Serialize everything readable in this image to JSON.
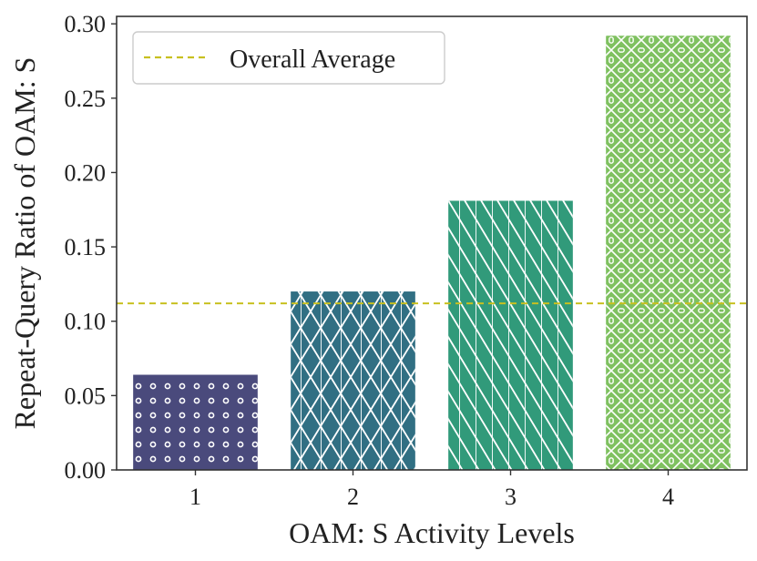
{
  "chart_data": {
    "type": "bar",
    "title": "",
    "xlabel": "OAM: S Activity Levels",
    "ylabel": "Repeat-Query Ratio of OAM: S",
    "categories": [
      "1",
      "2",
      "3",
      "4"
    ],
    "values": [
      0.064,
      0.12,
      0.181,
      0.292
    ],
    "ylim": [
      0,
      0.305
    ],
    "yticks": [
      "0.00",
      "0.05",
      "0.10",
      "0.15",
      "0.20",
      "0.25",
      "0.30"
    ],
    "bar_colors": [
      "#4a4a7c",
      "#316f83",
      "#319a7a",
      "#7fc160"
    ],
    "bar_hatches": [
      "dots",
      "diamond-cross",
      "diagonal",
      "diamond-dots"
    ],
    "reference_line": {
      "label": "Overall Average",
      "value": 0.112,
      "color": "#c8c020",
      "style": "dashed"
    },
    "legend_position": "upper-left",
    "grid": false
  }
}
